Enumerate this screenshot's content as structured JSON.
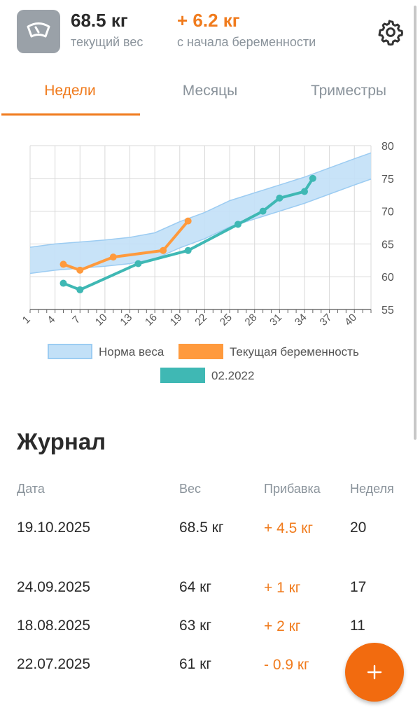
{
  "header": {
    "current_weight": "68.5 кг",
    "current_label": "текущий вес",
    "gain": "+ 6.2 кг",
    "gain_label": "с начала беременности",
    "scale_icon": "scale-icon",
    "settings_icon": "gear-icon"
  },
  "tabs": [
    {
      "label": "Недели",
      "active": true
    },
    {
      "label": "Месяцы",
      "active": false
    },
    {
      "label": "Триместры",
      "active": false
    }
  ],
  "chart_data": {
    "type": "line",
    "x_ticks": [
      1,
      4,
      7,
      10,
      13,
      16,
      19,
      22,
      25,
      28,
      31,
      34,
      37,
      40
    ],
    "y_ticks": [
      55,
      60,
      65,
      70,
      75,
      80
    ],
    "xlim": [
      1,
      42
    ],
    "ylim": [
      55,
      80
    ],
    "grid": true,
    "legend_position": "bottom",
    "norm_band": {
      "name": "Норма веса",
      "x": [
        1,
        4,
        7,
        10,
        13,
        16,
        19,
        22,
        25,
        28,
        31,
        34,
        37,
        40,
        42
      ],
      "upper": [
        64.5,
        65,
        65.3,
        65.6,
        66,
        66.7,
        68.4,
        69.8,
        71.6,
        72.8,
        74,
        75.2,
        76.6,
        78,
        78.9
      ],
      "lower": [
        60.5,
        61,
        61.3,
        61.6,
        62,
        62.7,
        64.4,
        65.8,
        67.6,
        68.8,
        70,
        71.2,
        72.6,
        74,
        74.9
      ]
    },
    "series": [
      {
        "name": "Текущая беременность",
        "color": "#ff9a3d",
        "x": [
          5,
          7,
          11,
          17,
          20
        ],
        "values": [
          61.9,
          61,
          63,
          64,
          68.5
        ]
      },
      {
        "name": "02.2022",
        "color": "#3fb8b4",
        "x": [
          5,
          7,
          14,
          20,
          26,
          29,
          31,
          34,
          35
        ],
        "values": [
          59,
          58,
          62,
          64,
          68,
          70,
          72,
          73,
          75
        ]
      }
    ],
    "colors": {
      "band_fill": "#c2e0f7",
      "band_stroke": "#9cccf2",
      "grid": "#d9d9d9"
    }
  },
  "journal": {
    "title": "Журнал",
    "columns": [
      "Дата",
      "Вес",
      "Прибавка",
      "Неделя"
    ],
    "rows": [
      {
        "date": "19.10.2025",
        "weight": "68.5 кг",
        "gain": "+ 4.5 кг",
        "week": "20"
      },
      {
        "date": "24.09.2025",
        "weight": "64 кг",
        "gain": "+ 1 кг",
        "week": "17"
      },
      {
        "date": "18.08.2025",
        "weight": "63 кг",
        "gain": "+ 2 кг",
        "week": "11"
      },
      {
        "date": "22.07.2025",
        "weight": "61 кг",
        "gain": "- 0.9 кг",
        "week": ""
      }
    ]
  },
  "fab": {
    "icon": "plus-icon",
    "color": "#f26b0f"
  }
}
